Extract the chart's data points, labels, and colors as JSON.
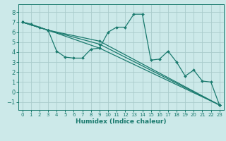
{
  "title": "",
  "xlabel": "Humidex (Indice chaleur)",
  "ylabel": "",
  "bg_color": "#cce9e9",
  "grid_color": "#aacccc",
  "line_color": "#1a7a6e",
  "xlim": [
    -0.5,
    23.5
  ],
  "ylim": [
    -1.8,
    8.8
  ],
  "xticks": [
    0,
    1,
    2,
    3,
    4,
    5,
    6,
    7,
    8,
    9,
    10,
    11,
    12,
    13,
    14,
    15,
    16,
    17,
    18,
    19,
    20,
    21,
    22,
    23
  ],
  "yticks": [
    -1,
    0,
    1,
    2,
    3,
    4,
    5,
    6,
    7,
    8
  ],
  "lines": [
    [
      0,
      7,
      1,
      6.8,
      2,
      6.5,
      3,
      6.2,
      4,
      4.1,
      5,
      3.5,
      6,
      3.4,
      7,
      3.4,
      8,
      4.3,
      9,
      4.4,
      10,
      6.0,
      11,
      6.5,
      12,
      6.5,
      13,
      7.8,
      14,
      7.8,
      15,
      3.2,
      16,
      3.3,
      17,
      4.1,
      18,
      3.0,
      19,
      1.6,
      20,
      2.2,
      21,
      1.1,
      22,
      1.0,
      23,
      -1.3
    ],
    [
      0,
      7,
      3,
      6.2,
      9,
      4.4,
      23,
      -1.3
    ],
    [
      0,
      7,
      3,
      6.2,
      9,
      4.8,
      23,
      -1.3
    ],
    [
      0,
      7,
      3,
      6.2,
      9,
      5.1,
      23,
      -1.3
    ]
  ],
  "xlabel_fontsize": 6.5,
  "xlabel_fontweight": "bold",
  "xtick_fontsize": 5.0,
  "ytick_fontsize": 6.0,
  "line_width": 0.9,
  "marker_size": 2.0
}
